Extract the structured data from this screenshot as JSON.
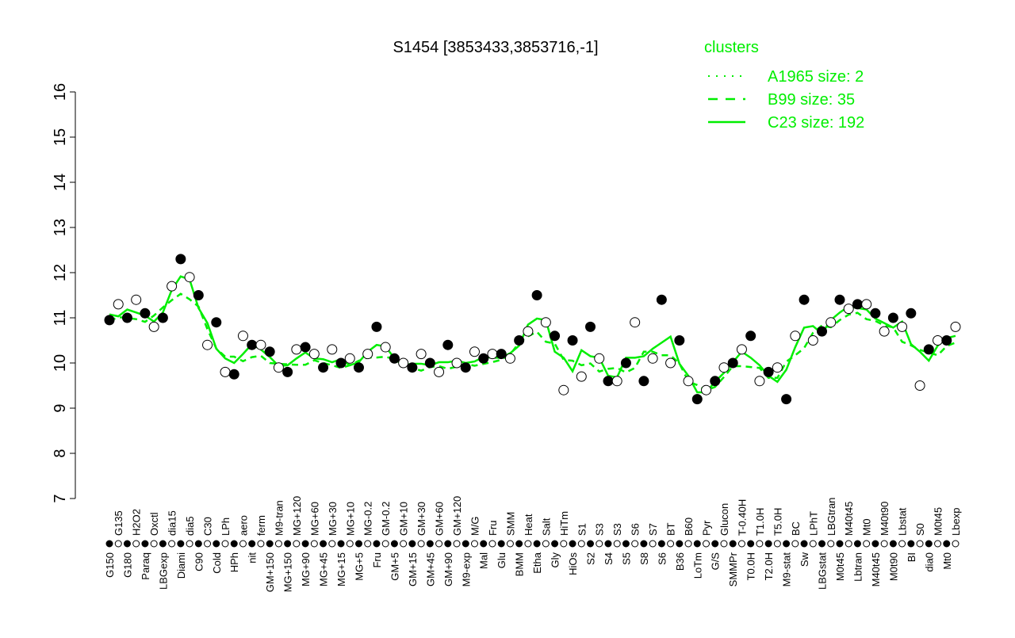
{
  "chart_data": {
    "type": "line",
    "title": "S1454 [3853433,3853716,-1]",
    "xlabel": "",
    "ylabel": "",
    "ylim": [
      7,
      16
    ],
    "yticks": [
      7,
      8,
      9,
      10,
      11,
      12,
      13,
      14,
      15,
      16
    ],
    "grid": false,
    "legend_placement": "top-right",
    "legend": {
      "title": "clusters",
      "entries": [
        {
          "label": "A1965 size: 2",
          "style": "dotted"
        },
        {
          "label": "B99 size: 35",
          "style": "dashed"
        },
        {
          "label": "C23 size: 192",
          "style": "solid"
        }
      ]
    },
    "colors": {
      "line": "#00ee00",
      "points": "#000000",
      "legend_text": "#00ee00"
    },
    "categories": [
      "G150",
      "G135",
      "G180",
      "H2O2",
      "Paraq",
      "Oxctl",
      "LBGexp",
      "dia15",
      "Diami",
      "dia5",
      "C90",
      "C30",
      "Cold",
      "LPh",
      "HPh",
      "aero",
      "nit",
      "ferm",
      "GM+150",
      "M9-tran",
      "MG+150",
      "MG+120",
      "MG+90",
      "MG+60",
      "MG+45",
      "MG+30",
      "MG+15",
      "MG+10",
      "MG+5",
      "MG-0.2",
      "Fru",
      "GM-0.2",
      "GM+5",
      "GM+10",
      "GM+15",
      "GM+30",
      "GM+45",
      "GM+60",
      "GM+90",
      "GM+120",
      "M9-exp",
      "M/G",
      "Mal",
      "Fru",
      "Glu",
      "SMM",
      "BMM",
      "Heat",
      "Etha",
      "Salt",
      "Gly",
      "HiTm",
      "HiOs",
      "S1",
      "S2",
      "S3",
      "S4",
      "S3",
      "S5",
      "S6",
      "S8",
      "S7",
      "S6",
      "BT",
      "B36",
      "B60",
      "LoTm",
      "Pyr",
      "G/S",
      "Glucon",
      "SMMPr",
      "T-0.40H",
      "T0.0H",
      "T1.0H",
      "T2.0H",
      "T5.0H",
      "M9-stat",
      "BC",
      "Sw",
      "LPhT",
      "LBGstat",
      "LBGtran",
      "M0t45",
      "M40t45",
      "Lbtran",
      "Mt0",
      "M40t45",
      "M40t90",
      "M0t90",
      "Lbstat",
      "BI",
      "S0",
      "dia0",
      "M0t45",
      "Mt0",
      "Lbexp"
    ],
    "series": [
      {
        "values": [
          10.95,
          11.3,
          11.0,
          11.4,
          11.1,
          10.8,
          11.0,
          11.7,
          12.3,
          11.9,
          11.5,
          10.4,
          10.9,
          9.8,
          9.75,
          10.6,
          10.4,
          10.4,
          10.25,
          9.9,
          9.8,
          10.3,
          10.35,
          10.2,
          9.9,
          10.3,
          10.0,
          10.1,
          9.9,
          10.2,
          10.8,
          10.35,
          10.1,
          10.0,
          9.9,
          10.2,
          10.0,
          9.8,
          10.4,
          10.0,
          9.9,
          10.25,
          10.1,
          10.2,
          10.2,
          10.1,
          10.5,
          10.7,
          11.5,
          10.9,
          10.6,
          9.4,
          10.5,
          9.7,
          10.8,
          10.1,
          9.6,
          9.6,
          10.0,
          10.9,
          9.6,
          10.1,
          11.4,
          10.0,
          10.5,
          9.6,
          9.2,
          9.4,
          9.6,
          9.9,
          10.0,
          10.3,
          10.6,
          9.6,
          9.8,
          9.9,
          9.2,
          10.6,
          11.4,
          10.5,
          10.7,
          10.9,
          11.4,
          11.2,
          11.3,
          11.3,
          11.1,
          10.7,
          11.0,
          10.8,
          11.1,
          9.5,
          10.3,
          10.5,
          10.5,
          10.8
        ]
      }
    ]
  }
}
